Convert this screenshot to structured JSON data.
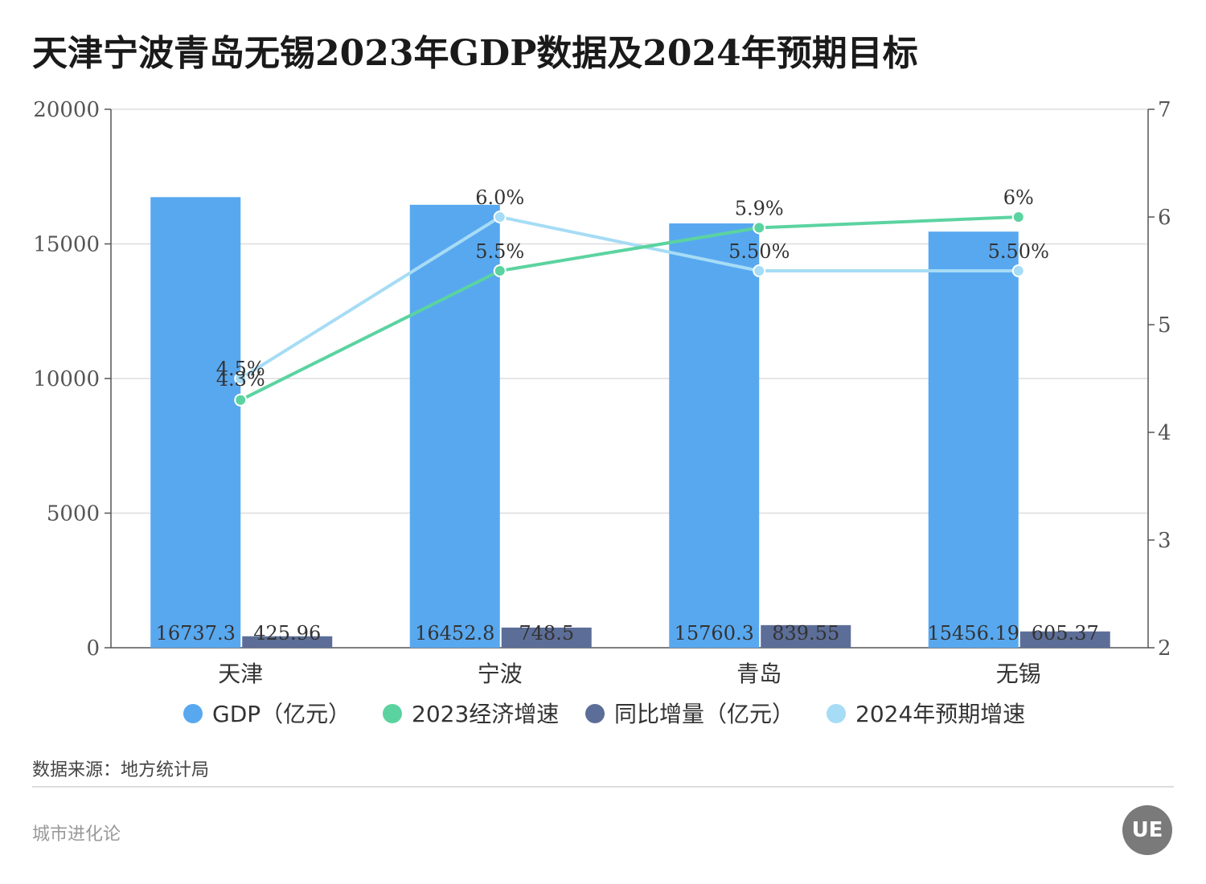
{
  "header": {
    "title": "天津宁波青岛无锡2023年GDP数据及2024年预期目标"
  },
  "footer": {
    "source": "数据来源：地方统计局",
    "brand": "城市进化论",
    "logo_text": "UE"
  },
  "colors": {
    "gdp": "#58A8F0",
    "growth2023": "#5BD3A0",
    "increase": "#5C6E98",
    "target2024": "#A6DCF5",
    "grid": "#dddddd",
    "axis": "#555555"
  },
  "chart_data": {
    "type": "bar",
    "title": "天津宁波青岛无锡2023年GDP数据及2024年预期目标",
    "categories": [
      "天津",
      "宁波",
      "青岛",
      "无锡"
    ],
    "left_axis": {
      "ticks": [
        "0",
        "5000",
        "10000",
        "15000",
        "20000"
      ],
      "ylim": [
        0,
        20000
      ]
    },
    "right_axis": {
      "ticks": [
        "2",
        "3",
        "4",
        "5",
        "6",
        "7"
      ],
      "ylim": [
        2,
        7
      ]
    },
    "bar_series": [
      {
        "name": "GDP（亿元）",
        "values": [
          16737.3,
          16452.8,
          15760.3,
          15456.19
        ],
        "labels": [
          "16737.3",
          "16452.8",
          "15760.3",
          "15456.19"
        ],
        "axis": "left"
      },
      {
        "name": "同比增量（亿元）",
        "values": [
          425.96,
          748.5,
          839.55,
          605.37
        ],
        "labels": [
          "425.96",
          "748.5",
          "839.55",
          "605.37"
        ],
        "axis": "left"
      }
    ],
    "line_series": [
      {
        "name": "2023经济增速",
        "values": [
          4.3,
          5.5,
          5.9,
          6.0
        ],
        "labels": [
          "4.3%",
          "5.5%",
          "5.9%",
          "6%"
        ],
        "axis": "right"
      },
      {
        "name": "2024年预期增速",
        "values": [
          4.5,
          6.0,
          5.5,
          5.5
        ],
        "labels": [
          "4.5%",
          "6.0%",
          "5.50%",
          "5.50%"
        ],
        "axis": "right"
      }
    ],
    "legend": {
      "placement": "bottom",
      "items": [
        "GDP（亿元）",
        "2023经济增速",
        "同比增量（亿元）",
        "2024年预期增速"
      ]
    },
    "grid": true
  }
}
